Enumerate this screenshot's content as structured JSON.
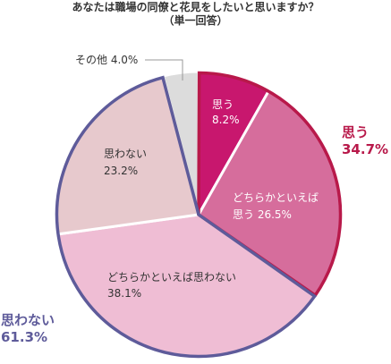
{
  "chart_data": {
    "type": "pie",
    "title": "あなたは職場の同僚と花見をしたいと思いますか？",
    "subtitle": "（単一回答）",
    "slices": [
      {
        "label": "思う",
        "value": 8.2,
        "color": "#c8176e"
      },
      {
        "label": "どちらかといえば思う",
        "value": 26.5,
        "color": "#d66d9c"
      },
      {
        "label": "どちらかといえば思わない",
        "value": 38.1,
        "color": "#efbdd4"
      },
      {
        "label": "思わない",
        "value": 23.2,
        "color": "#e7c9cd"
      },
      {
        "label": "その他",
        "value": 4.0,
        "color": "#dcdcdc"
      }
    ],
    "slice_labels": {
      "s0_line1": "思う",
      "s0_line2": "8.2%",
      "s1_line1": "どちらかといえば",
      "s1_line2": "思う 26.5%",
      "s2_line1": "どちらかといえば思わない",
      "s2_line2": "38.1%",
      "s3_line1": "思わない",
      "s3_line2": "23.2%",
      "s4_text": "その他 4.0%"
    },
    "groups": [
      {
        "label": "思う",
        "value_text": "34.7%",
        "color": "#b8194a"
      },
      {
        "label": "思わない",
        "value_text": "61.3%",
        "color": "#5e5b9a"
      }
    ]
  }
}
